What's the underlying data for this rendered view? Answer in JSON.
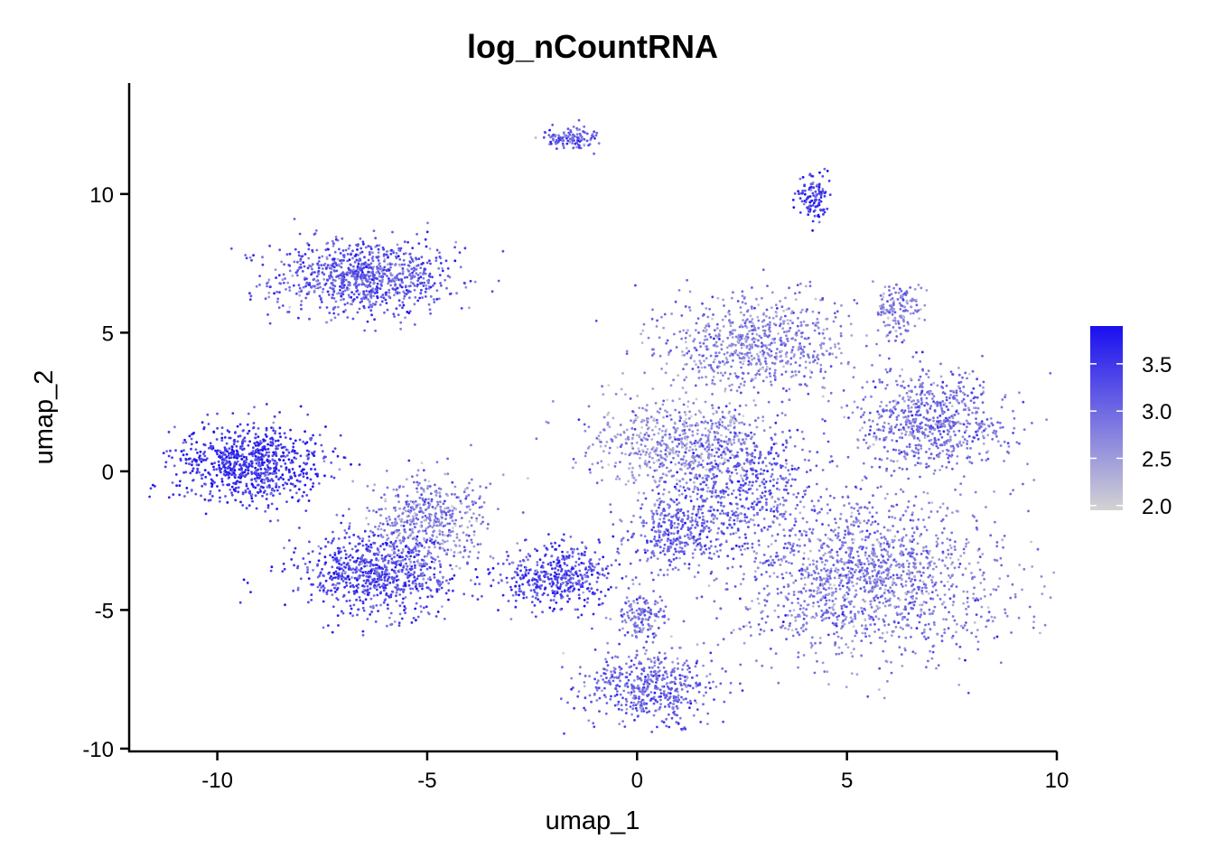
{
  "chart_data": {
    "type": "scatter",
    "title": "log_nCountRNA",
    "xlabel": "umap_1",
    "ylabel": "umap_2",
    "xlim": [
      -12.1,
      10
    ],
    "ylim": [
      -10.1,
      14
    ],
    "x_ticks": [
      -10,
      -5,
      0,
      5,
      10
    ],
    "y_ticks": [
      -10,
      -5,
      0,
      5,
      10
    ],
    "x_tick_labels": [
      "-10",
      "-5",
      "0",
      "5",
      "10"
    ],
    "y_tick_labels": [
      "-10",
      "-5",
      "0",
      "5",
      "10"
    ],
    "grid": false,
    "legend": {
      "position": "right",
      "type": "colorbar",
      "range": [
        1.95,
        3.9
      ],
      "ticks": [
        2.0,
        2.5,
        3.0,
        3.5
      ],
      "tick_labels": [
        "2.0",
        "2.5",
        "3.0",
        "3.5"
      ],
      "colors": {
        "low": "#d3d3d3",
        "high": "#1a0ff0"
      }
    },
    "clusters": [
      {
        "center": [
          -6.5,
          7.0
        ],
        "spread": [
          1.1,
          0.7
        ],
        "value": 3.15,
        "count": 900
      },
      {
        "center": [
          -9.2,
          0.3
        ],
        "spread": [
          0.9,
          0.7
        ],
        "value": 3.5,
        "count": 800
      },
      {
        "center": [
          -6.2,
          -3.7
        ],
        "spread": [
          0.9,
          0.7
        ],
        "value": 3.3,
        "count": 750
      },
      {
        "center": [
          -5.0,
          -1.8
        ],
        "spread": [
          0.7,
          0.9
        ],
        "value": 2.75,
        "count": 500
      },
      {
        "center": [
          -1.6,
          12.0
        ],
        "spread": [
          0.3,
          0.2
        ],
        "value": 3.1,
        "count": 120
      },
      {
        "center": [
          4.2,
          9.8
        ],
        "spread": [
          0.2,
          0.4
        ],
        "value": 3.5,
        "count": 120
      },
      {
        "center": [
          6.2,
          5.9
        ],
        "spread": [
          0.3,
          0.5
        ],
        "value": 2.8,
        "count": 150
      },
      {
        "center": [
          2.8,
          4.6
        ],
        "spread": [
          1.1,
          0.9
        ],
        "value": 2.75,
        "count": 700
      },
      {
        "center": [
          1.0,
          1.0
        ],
        "spread": [
          1.1,
          0.8
        ],
        "value": 2.6,
        "count": 650
      },
      {
        "center": [
          7.0,
          1.8
        ],
        "spread": [
          0.9,
          0.9
        ],
        "value": 2.9,
        "count": 700
      },
      {
        "center": [
          5.5,
          -3.8
        ],
        "spread": [
          1.6,
          1.4
        ],
        "value": 2.8,
        "count": 1500
      },
      {
        "center": [
          -1.9,
          -3.8
        ],
        "spread": [
          0.7,
          0.6
        ],
        "value": 3.3,
        "count": 450
      },
      {
        "center": [
          0.3,
          -7.8
        ],
        "spread": [
          0.8,
          0.6
        ],
        "value": 3.05,
        "count": 500
      },
      {
        "center": [
          0.9,
          -2.2
        ],
        "spread": [
          0.6,
          0.7
        ],
        "value": 3.0,
        "count": 350
      },
      {
        "center": [
          2.6,
          -0.5
        ],
        "spread": [
          0.9,
          1.2
        ],
        "value": 3.1,
        "count": 500
      },
      {
        "center": [
          0.1,
          -5.2
        ],
        "spread": [
          0.3,
          0.5
        ],
        "value": 2.9,
        "count": 150
      }
    ]
  }
}
